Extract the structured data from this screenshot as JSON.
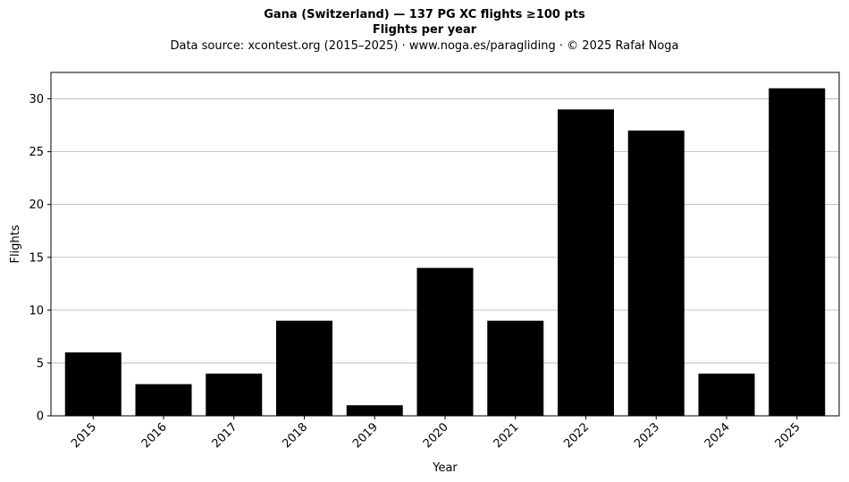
{
  "header": {
    "title": "Gana (Switzerland)  —  137 PG XC flights ≥100 pts",
    "subtitle": "Flights per year",
    "source": "Data source: xcontest.org (2015–2025)  ·  www.noga.es/paragliding  ·  © 2025 Rafał Noga"
  },
  "chart_data": {
    "type": "bar",
    "title": "Gana (Switzerland)  —  137 PG XC flights ≥100 pts",
    "subtitle": "Flights per year",
    "xlabel": "Year",
    "ylabel": "Flights",
    "categories": [
      "2015",
      "2016",
      "2017",
      "2018",
      "2019",
      "2020",
      "2021",
      "2022",
      "2023",
      "2024",
      "2025"
    ],
    "values": [
      6,
      3,
      4,
      9,
      1,
      14,
      9,
      29,
      27,
      4,
      31
    ],
    "ylim": [
      0,
      32.5
    ],
    "yticks": [
      0,
      5,
      10,
      15,
      20,
      25,
      30
    ],
    "grid": "y",
    "bar_color": "#000000",
    "grid_color": "#b0b0b0",
    "xtick_rotation": 45
  }
}
